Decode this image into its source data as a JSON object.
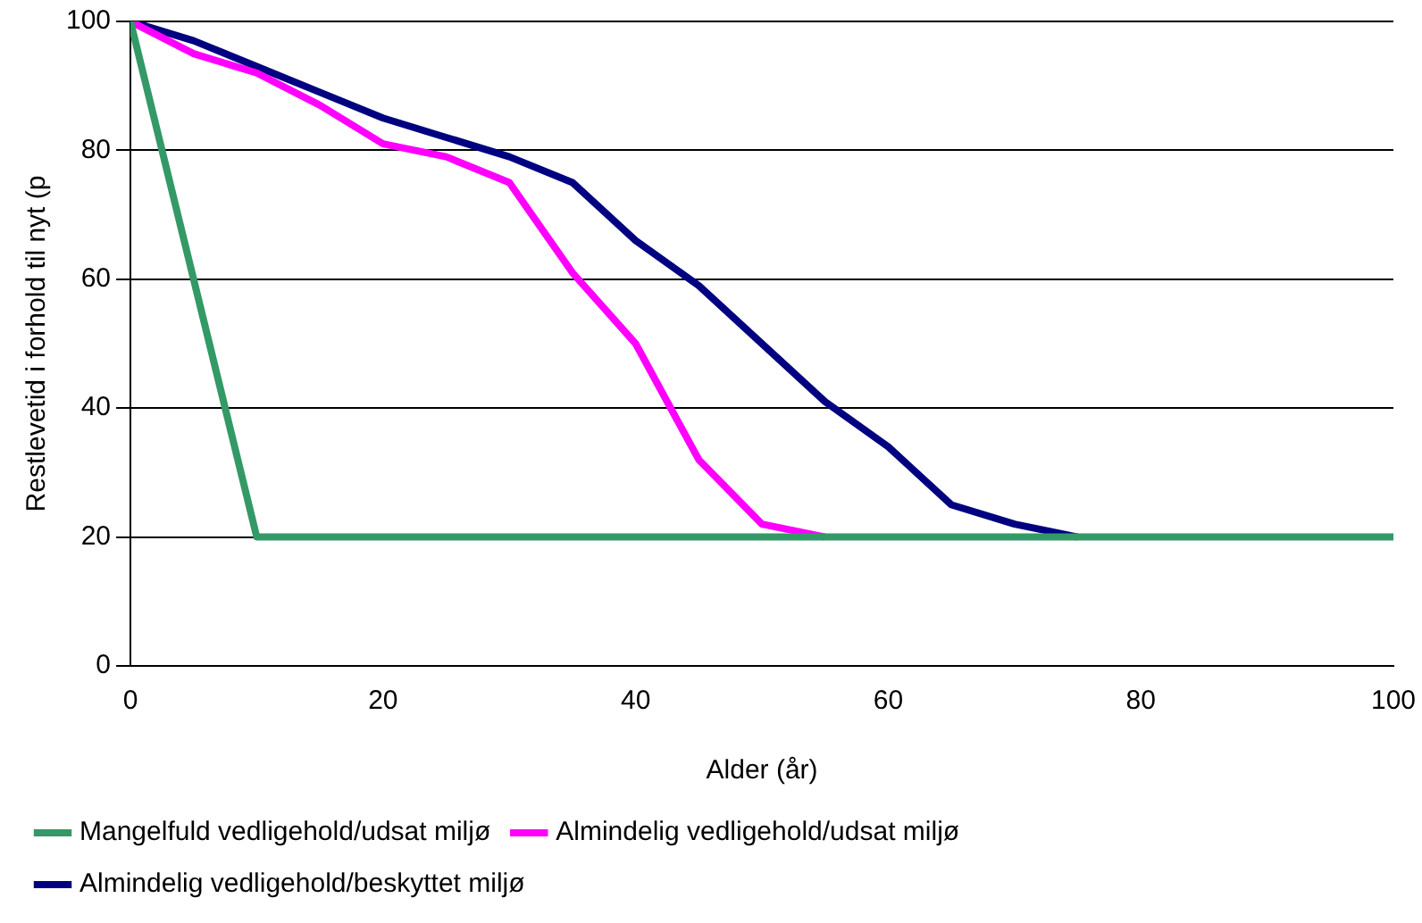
{
  "chart_data": {
    "type": "line",
    "xlabel": "Alder (år)",
    "ylabel": "Restlevetid i forhold til nyt (p",
    "xlim": [
      0,
      100
    ],
    "xticks": [
      0,
      20,
      40,
      60,
      80,
      100
    ],
    "ylim": [
      0,
      100
    ],
    "yticks": [
      0,
      20,
      40,
      60,
      80,
      100
    ],
    "grid": "y",
    "legend": "bottom",
    "marker": "none",
    "line_style": "solid",
    "series": [
      {
        "name": "Almindelig vedligehold/beskyttet miljø",
        "color": "#000080",
        "x": [
          0,
          5,
          10,
          15,
          20,
          25,
          30,
          35,
          40,
          45,
          50,
          55,
          60,
          65,
          70,
          75
        ],
        "values": [
          100,
          97,
          93,
          89,
          85,
          82,
          79,
          75,
          66,
          59,
          50,
          41,
          34,
          25,
          22,
          20
        ]
      },
      {
        "name": "Almindelig vedligehold/udsat miljø",
        "color": "#ff00ff",
        "x": [
          0,
          5,
          10,
          15,
          20,
          25,
          30,
          35,
          40,
          45,
          50,
          55
        ],
        "values": [
          100,
          95,
          92,
          87,
          81,
          79,
          75,
          61,
          50,
          32,
          22,
          20
        ]
      },
      {
        "name": "Mangelfuld vedligehold/udsat miljø",
        "color": "#339966",
        "x": [
          0,
          10,
          100
        ],
        "values": [
          100,
          20,
          20
        ]
      }
    ]
  }
}
